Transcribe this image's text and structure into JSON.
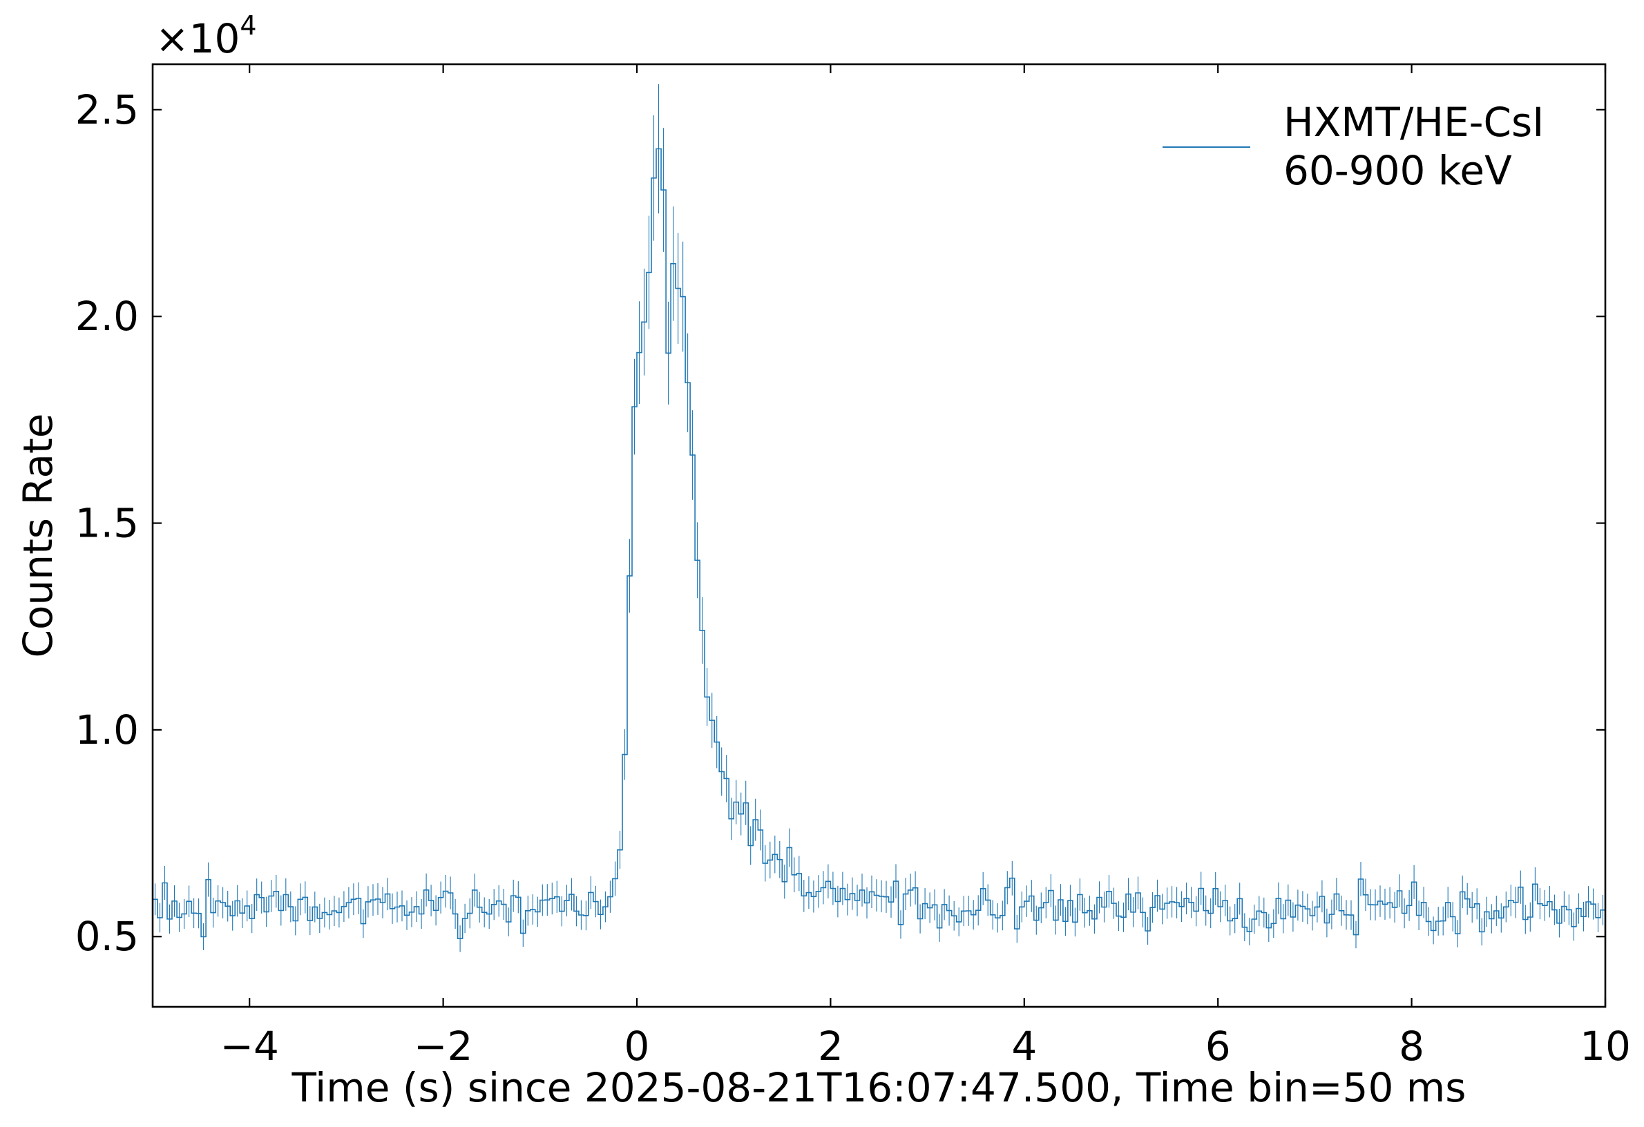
{
  "chart_data": {
    "type": "line",
    "style": "step histogram with error bars",
    "xlabel": "Time (s) since 2025-08-21T16:07:47.500, Time bin=50 ms",
    "ylabel": "Counts Rate",
    "y_offset_text": {
      "base": "×10",
      "exponent": "4"
    },
    "xlim": [
      -5,
      10
    ],
    "ylim": [
      3300,
      26100
    ],
    "grid": false,
    "legend_position": "top-right",
    "xticks": [
      {
        "value": -4,
        "label": "−4"
      },
      {
        "value": -2,
        "label": "−2"
      },
      {
        "value": 0,
        "label": "0"
      },
      {
        "value": 2,
        "label": "2"
      },
      {
        "value": 4,
        "label": "4"
      },
      {
        "value": 6,
        "label": "6"
      },
      {
        "value": 8,
        "label": "8"
      },
      {
        "value": 10,
        "label": "10"
      }
    ],
    "yticks": [
      {
        "value": 5000,
        "label": "0.5"
      },
      {
        "value": 10000,
        "label": "1.0"
      },
      {
        "value": 15000,
        "label": "1.5"
      },
      {
        "value": 20000,
        "label": "2.0"
      },
      {
        "value": 25000,
        "label": "2.5"
      }
    ],
    "series": [
      {
        "name": "HXMT/HE-CsI",
        "name_line2": "60-900 keV",
        "color": "#1f77b4",
        "bin_width": 0.05,
        "bin_centers_range": [
          -4.975,
          9.975
        ],
        "background_level": 5700,
        "background_sigma": 250,
        "error_fraction": 0.065,
        "profile_anchors": {
          "t": [
            -5,
            -0.4,
            -0.3,
            -0.2,
            -0.15,
            -0.1,
            -0.05,
            0.0,
            0.05,
            0.1,
            0.15,
            0.2,
            0.25,
            0.3,
            0.35,
            0.4,
            0.45,
            0.5,
            0.55,
            0.6,
            0.65,
            0.7,
            0.75,
            0.8,
            0.9,
            1.0,
            1.1,
            1.2,
            1.4,
            1.6,
            1.8,
            2.0,
            2.5,
            3.0,
            10
          ],
          "rate": [
            5650,
            5750,
            5900,
            6700,
            7300,
            11500,
            16000,
            19700,
            19200,
            20100,
            22800,
            24400,
            24400,
            20100,
            19200,
            21200,
            21100,
            19500,
            17800,
            15000,
            12700,
            12000,
            10500,
            10000,
            9000,
            8500,
            7900,
            7400,
            6800,
            6400,
            6200,
            6000,
            5800,
            5700,
            5700
          ]
        }
      }
    ]
  }
}
